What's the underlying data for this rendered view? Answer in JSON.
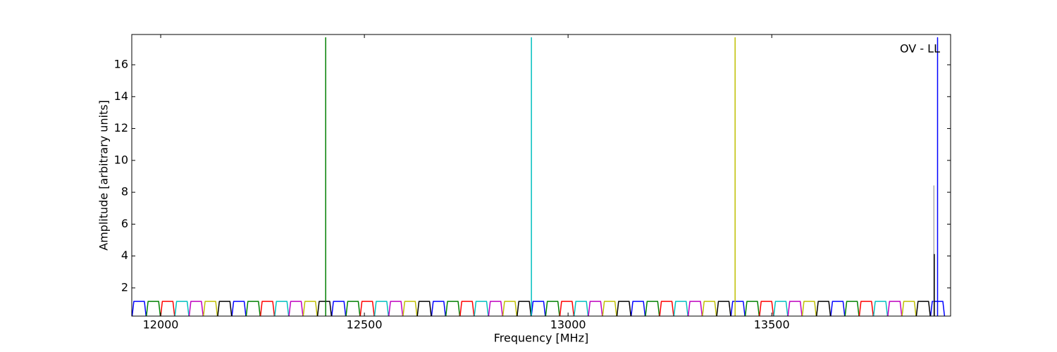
{
  "chart_data": {
    "type": "line",
    "annotation": "OV - LL",
    "x_label": "Frequency [MHz]",
    "y_label": "Amplitude [arbitrary units]",
    "xlim": [
      11929,
      13939
    ],
    "ylim": [
      0.23,
      17.9
    ],
    "xticks": [
      12000,
      12500,
      13000,
      13500
    ],
    "yticks": [
      2,
      4,
      6,
      8,
      10,
      12,
      14,
      16
    ],
    "grid": false,
    "series": [
      {
        "color": "#0000ff",
        "x": [
          11930,
          11934,
          11960,
          11964,
          null,
          12175,
          12179,
          12205,
          12209,
          null,
          12420,
          12424,
          12450,
          12454,
          null,
          12665,
          12669,
          12695,
          12699,
          null,
          12910,
          12914,
          12940,
          12944,
          null,
          13155,
          13159,
          13185,
          13189,
          null,
          13400,
          13404,
          13430,
          13434,
          null,
          13645,
          13649,
          13675,
          13679,
          null,
          13890,
          13894,
          13920,
          13924
        ],
        "values": [
          0.25,
          1.15,
          1.15,
          0.25,
          null,
          0.25,
          1.15,
          1.15,
          0.25,
          null,
          0.25,
          1.15,
          1.15,
          0.25,
          null,
          0.25,
          1.15,
          1.15,
          0.25,
          null,
          0.25,
          1.15,
          1.15,
          0.25,
          null,
          0.25,
          1.15,
          1.15,
          0.25,
          null,
          0.25,
          1.15,
          1.15,
          0.25,
          null,
          0.25,
          1.15,
          1.15,
          0.25,
          null,
          0.25,
          1.15,
          1.15,
          0.25
        ]
      },
      {
        "color": "#008000",
        "x": [
          11965,
          11969,
          11995,
          11999,
          null,
          12210,
          12214,
          12240,
          12244,
          null,
          12455,
          12459,
          12485,
          12489,
          null,
          12700,
          12704,
          12730,
          12734,
          null,
          12945,
          12949,
          12975,
          12979,
          null,
          13190,
          13194,
          13220,
          13224,
          null,
          13435,
          13439,
          13465,
          13469,
          null,
          13680,
          13684,
          13710,
          13714
        ],
        "values": [
          0.25,
          1.15,
          1.15,
          0.25,
          null,
          0.25,
          1.15,
          1.15,
          0.25,
          null,
          0.25,
          1.15,
          1.15,
          0.25,
          null,
          0.25,
          1.15,
          1.15,
          0.25,
          null,
          0.25,
          1.15,
          1.15,
          0.25,
          null,
          0.25,
          1.15,
          1.15,
          0.25,
          null,
          0.25,
          1.15,
          1.15,
          0.25,
          null,
          0.25,
          1.15,
          1.15,
          0.25
        ]
      },
      {
        "color": "#ff0000",
        "x": [
          12000,
          12004,
          12030,
          12034,
          null,
          12245,
          12249,
          12275,
          12279,
          null,
          12490,
          12494,
          12520,
          12524,
          null,
          12735,
          12739,
          12765,
          12769,
          null,
          12980,
          12984,
          13010,
          13014,
          null,
          13225,
          13229,
          13255,
          13259,
          null,
          13470,
          13474,
          13500,
          13504,
          null,
          13715,
          13719,
          13745,
          13749
        ],
        "values": [
          0.25,
          1.15,
          1.15,
          0.25,
          null,
          0.25,
          1.15,
          1.15,
          0.25,
          null,
          0.25,
          1.15,
          1.15,
          0.25,
          null,
          0.25,
          1.15,
          1.15,
          0.25,
          null,
          0.25,
          1.15,
          1.15,
          0.25,
          null,
          0.25,
          1.15,
          1.15,
          0.25,
          null,
          0.25,
          1.15,
          1.15,
          0.25,
          null,
          0.25,
          1.15,
          1.15,
          0.25
        ]
      },
      {
        "color": "#00bfbf",
        "x": [
          12035,
          12039,
          12065,
          12069,
          null,
          12280,
          12284,
          12310,
          12314,
          null,
          12525,
          12529,
          12555,
          12559,
          null,
          12770,
          12774,
          12800,
          12804,
          null,
          13015,
          13019,
          13045,
          13049,
          null,
          13260,
          13264,
          13290,
          13294,
          null,
          13505,
          13509,
          13535,
          13539,
          null,
          13750,
          13754,
          13780,
          13784
        ],
        "values": [
          0.25,
          1.15,
          1.15,
          0.25,
          null,
          0.25,
          1.15,
          1.15,
          0.25,
          null,
          0.25,
          1.15,
          1.15,
          0.25,
          null,
          0.25,
          1.15,
          1.15,
          0.25,
          null,
          0.25,
          1.15,
          1.15,
          0.25,
          null,
          0.25,
          1.15,
          1.15,
          0.25,
          null,
          0.25,
          1.15,
          1.15,
          0.25,
          null,
          0.25,
          1.15,
          1.15,
          0.25
        ]
      },
      {
        "color": "#bf00bf",
        "x": [
          12070,
          12074,
          12100,
          12104,
          null,
          12315,
          12319,
          12345,
          12349,
          null,
          12560,
          12564,
          12590,
          12594,
          null,
          12805,
          12809,
          12835,
          12839,
          null,
          13050,
          13054,
          13080,
          13084,
          null,
          13295,
          13299,
          13325,
          13329,
          null,
          13540,
          13544,
          13570,
          13574,
          null,
          13785,
          13789,
          13815,
          13819
        ],
        "values": [
          0.25,
          1.15,
          1.15,
          0.25,
          null,
          0.25,
          1.15,
          1.15,
          0.25,
          null,
          0.25,
          1.15,
          1.15,
          0.25,
          null,
          0.25,
          1.15,
          1.15,
          0.25,
          null,
          0.25,
          1.15,
          1.15,
          0.25,
          null,
          0.25,
          1.15,
          1.15,
          0.25,
          null,
          0.25,
          1.15,
          1.15,
          0.25,
          null,
          0.25,
          1.15,
          1.15,
          0.25
        ]
      },
      {
        "color": "#bfbf00",
        "x": [
          12105,
          12109,
          12135,
          12139,
          null,
          12350,
          12354,
          12380,
          12384,
          null,
          12595,
          12599,
          12625,
          12629,
          null,
          12840,
          12844,
          12870,
          12874,
          null,
          13085,
          13089,
          13115,
          13119,
          null,
          13330,
          13334,
          13360,
          13364,
          null,
          13575,
          13579,
          13605,
          13609,
          null,
          13820,
          13824,
          13850,
          13854
        ],
        "values": [
          0.25,
          1.15,
          1.15,
          0.25,
          null,
          0.25,
          1.15,
          1.15,
          0.25,
          null,
          0.25,
          1.15,
          1.15,
          0.25,
          null,
          0.25,
          1.15,
          1.15,
          0.25,
          null,
          0.25,
          1.15,
          1.15,
          0.25,
          null,
          0.25,
          1.15,
          1.15,
          0.25,
          null,
          0.25,
          1.15,
          1.15,
          0.25,
          null,
          0.25,
          1.15,
          1.15,
          0.25
        ]
      },
      {
        "color": "#000000",
        "x": [
          12140,
          12144,
          12170,
          12174,
          null,
          12385,
          12389,
          12415,
          12419,
          null,
          12630,
          12634,
          12660,
          12664,
          null,
          12875,
          12879,
          12905,
          12909,
          null,
          13120,
          13124,
          13150,
          13154,
          null,
          13365,
          13369,
          13395,
          13399,
          null,
          13610,
          13614,
          13640,
          13644,
          null,
          13855,
          13859,
          13885,
          13889
        ],
        "values": [
          0.25,
          1.15,
          1.15,
          0.25,
          null,
          0.25,
          1.15,
          1.15,
          0.25,
          null,
          0.25,
          1.15,
          1.15,
          0.25,
          null,
          0.25,
          1.15,
          1.15,
          0.25,
          null,
          0.25,
          1.15,
          1.15,
          0.25,
          null,
          0.25,
          1.15,
          1.15,
          0.25,
          null,
          0.25,
          1.15,
          1.15,
          0.25,
          null,
          0.25,
          1.15,
          1.15,
          0.25
        ]
      },
      {
        "color": "#008000",
        "x": [
          12405,
          12405,
          12405
        ],
        "values": [
          0.25,
          17.7,
          0.25
        ]
      },
      {
        "color": "#00bfbf",
        "x": [
          12910,
          12910,
          12910
        ],
        "values": [
          0.25,
          17.7,
          0.25
        ]
      },
      {
        "color": "#bfbf00",
        "x": [
          13410,
          13410,
          13410
        ],
        "values": [
          0.25,
          17.7,
          0.25
        ]
      },
      {
        "color": "#aaaaaa",
        "x": [
          13898,
          13898,
          13898
        ],
        "values": [
          0.25,
          8.4,
          0.25
        ]
      },
      {
        "color": "#000000",
        "x": [
          13899,
          13899,
          13899
        ],
        "values": [
          0.25,
          4.1,
          0.25
        ]
      },
      {
        "color": "#0000ff",
        "x": [
          13907,
          13907,
          13907
        ],
        "values": [
          0.25,
          17.7,
          0.25
        ]
      }
    ]
  }
}
